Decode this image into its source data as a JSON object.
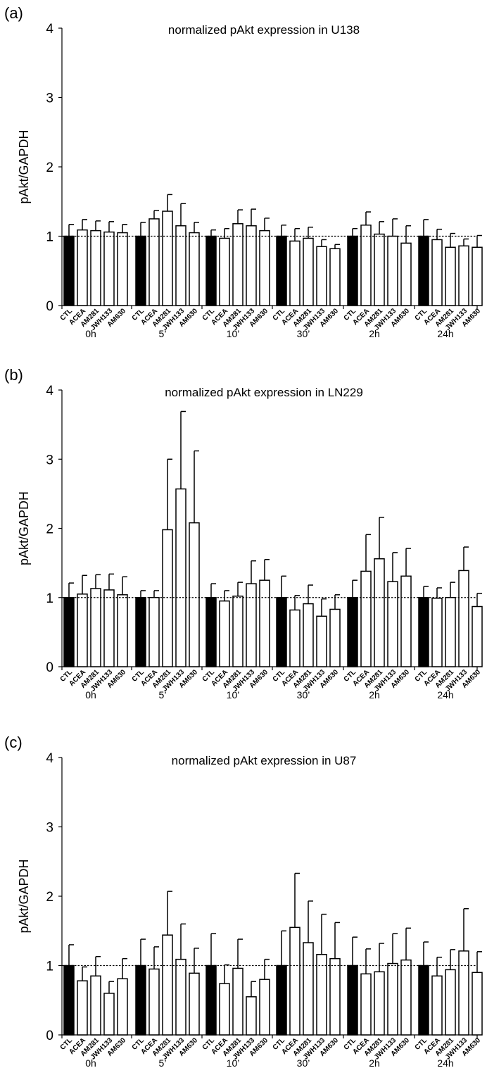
{
  "categories": [
    "CTL",
    "ACEA",
    "AM281",
    "JWH133",
    "AM630"
  ],
  "groups": [
    "0h",
    "5’",
    "10’",
    "30’",
    "2h",
    "24h"
  ],
  "ylabel": "pAkt/GAPDH",
  "colors": {
    "control_bar": "#000000",
    "treatment_bar": "#ffffff",
    "stroke": "#000000"
  },
  "chart_data": [
    {
      "type": "bar",
      "panel": "(a)",
      "title": "normalized pAkt expression in U138",
      "ylabel": "pAkt/GAPDH",
      "ylim": [
        0,
        4
      ],
      "yticks": [
        0,
        1,
        2,
        3,
        4
      ],
      "reference_line": 1,
      "series": [
        {
          "group": "0h",
          "values": [
            1.0,
            1.09,
            1.08,
            1.06,
            1.05
          ],
          "errors": [
            0.17,
            0.15,
            0.14,
            0.15,
            0.12
          ]
        },
        {
          "group": "5’",
          "values": [
            1.0,
            1.25,
            1.36,
            1.15,
            1.05
          ],
          "errors": [
            0.2,
            0.12,
            0.24,
            0.32,
            0.15
          ]
        },
        {
          "group": "10’",
          "values": [
            1.0,
            0.97,
            1.18,
            1.15,
            1.08
          ],
          "errors": [
            0.09,
            0.14,
            0.2,
            0.24,
            0.18
          ]
        },
        {
          "group": "30’",
          "values": [
            1.0,
            0.93,
            0.97,
            0.85,
            0.82
          ],
          "errors": [
            0.16,
            0.18,
            0.16,
            0.1,
            0.06
          ]
        },
        {
          "group": "2h",
          "values": [
            1.0,
            1.16,
            1.03,
            1.0,
            0.9
          ],
          "errors": [
            0.11,
            0.19,
            0.18,
            0.25,
            0.25
          ]
        },
        {
          "group": "24h",
          "values": [
            1.0,
            0.95,
            0.84,
            0.86,
            0.84
          ],
          "errors": [
            0.24,
            0.15,
            0.2,
            0.1,
            0.17
          ]
        }
      ]
    },
    {
      "type": "bar",
      "panel": "(b)",
      "title": "normalized pAkt expression in LN229",
      "ylabel": "pAkt/GAPDH",
      "ylim": [
        0,
        4
      ],
      "yticks": [
        0,
        1,
        2,
        3,
        4
      ],
      "reference_line": 1,
      "series": [
        {
          "group": "0h",
          "values": [
            1.0,
            1.05,
            1.13,
            1.11,
            1.04
          ],
          "errors": [
            0.21,
            0.27,
            0.2,
            0.23,
            0.26
          ]
        },
        {
          "group": "5’",
          "values": [
            1.0,
            1.0,
            1.98,
            2.57,
            2.08
          ],
          "errors": [
            0.1,
            0.1,
            1.02,
            1.12,
            1.04
          ]
        },
        {
          "group": "10’",
          "values": [
            1.0,
            0.95,
            1.02,
            1.2,
            1.25
          ],
          "errors": [
            0.2,
            0.15,
            0.2,
            0.33,
            0.3
          ]
        },
        {
          "group": "30’",
          "values": [
            1.0,
            0.82,
            0.91,
            0.73,
            0.83
          ],
          "errors": [
            0.31,
            0.21,
            0.27,
            0.25,
            0.21
          ]
        },
        {
          "group": "2h",
          "values": [
            1.0,
            1.38,
            1.56,
            1.23,
            1.31
          ],
          "errors": [
            0.25,
            0.53,
            0.6,
            0.42,
            0.4
          ]
        },
        {
          "group": "24h",
          "values": [
            1.0,
            0.99,
            1.0,
            1.39,
            0.87
          ],
          "errors": [
            0.16,
            0.15,
            0.22,
            0.34,
            0.19
          ]
        }
      ]
    },
    {
      "type": "bar",
      "panel": "(c)",
      "title": "normalized pAkt expression in U87",
      "ylabel": "pAkt/GAPDH",
      "ylim": [
        0,
        4
      ],
      "yticks": [
        0,
        1,
        2,
        3,
        4
      ],
      "reference_line": 1,
      "series": [
        {
          "group": "0h",
          "values": [
            1.0,
            0.78,
            0.85,
            0.6,
            0.81
          ],
          "errors": [
            0.3,
            0.2,
            0.28,
            0.17,
            0.29
          ]
        },
        {
          "group": "5’",
          "values": [
            1.0,
            0.95,
            1.44,
            1.09,
            0.89
          ],
          "errors": [
            0.38,
            0.32,
            0.63,
            0.51,
            0.36
          ]
        },
        {
          "group": "10’",
          "values": [
            1.0,
            0.74,
            0.96,
            0.55,
            0.8
          ],
          "errors": [
            0.46,
            0.27,
            0.42,
            0.22,
            0.29
          ]
        },
        {
          "group": "30’",
          "values": [
            1.0,
            1.55,
            1.33,
            1.16,
            1.1
          ],
          "errors": [
            0.5,
            0.78,
            0.6,
            0.58,
            0.52
          ]
        },
        {
          "group": "2h",
          "values": [
            1.0,
            0.88,
            0.91,
            1.03,
            1.08
          ],
          "errors": [
            0.41,
            0.36,
            0.41,
            0.43,
            0.46
          ]
        },
        {
          "group": "24h",
          "values": [
            1.0,
            0.85,
            0.94,
            1.21,
            0.9
          ],
          "errors": [
            0.34,
            0.27,
            0.29,
            0.61,
            0.3
          ]
        }
      ]
    }
  ]
}
